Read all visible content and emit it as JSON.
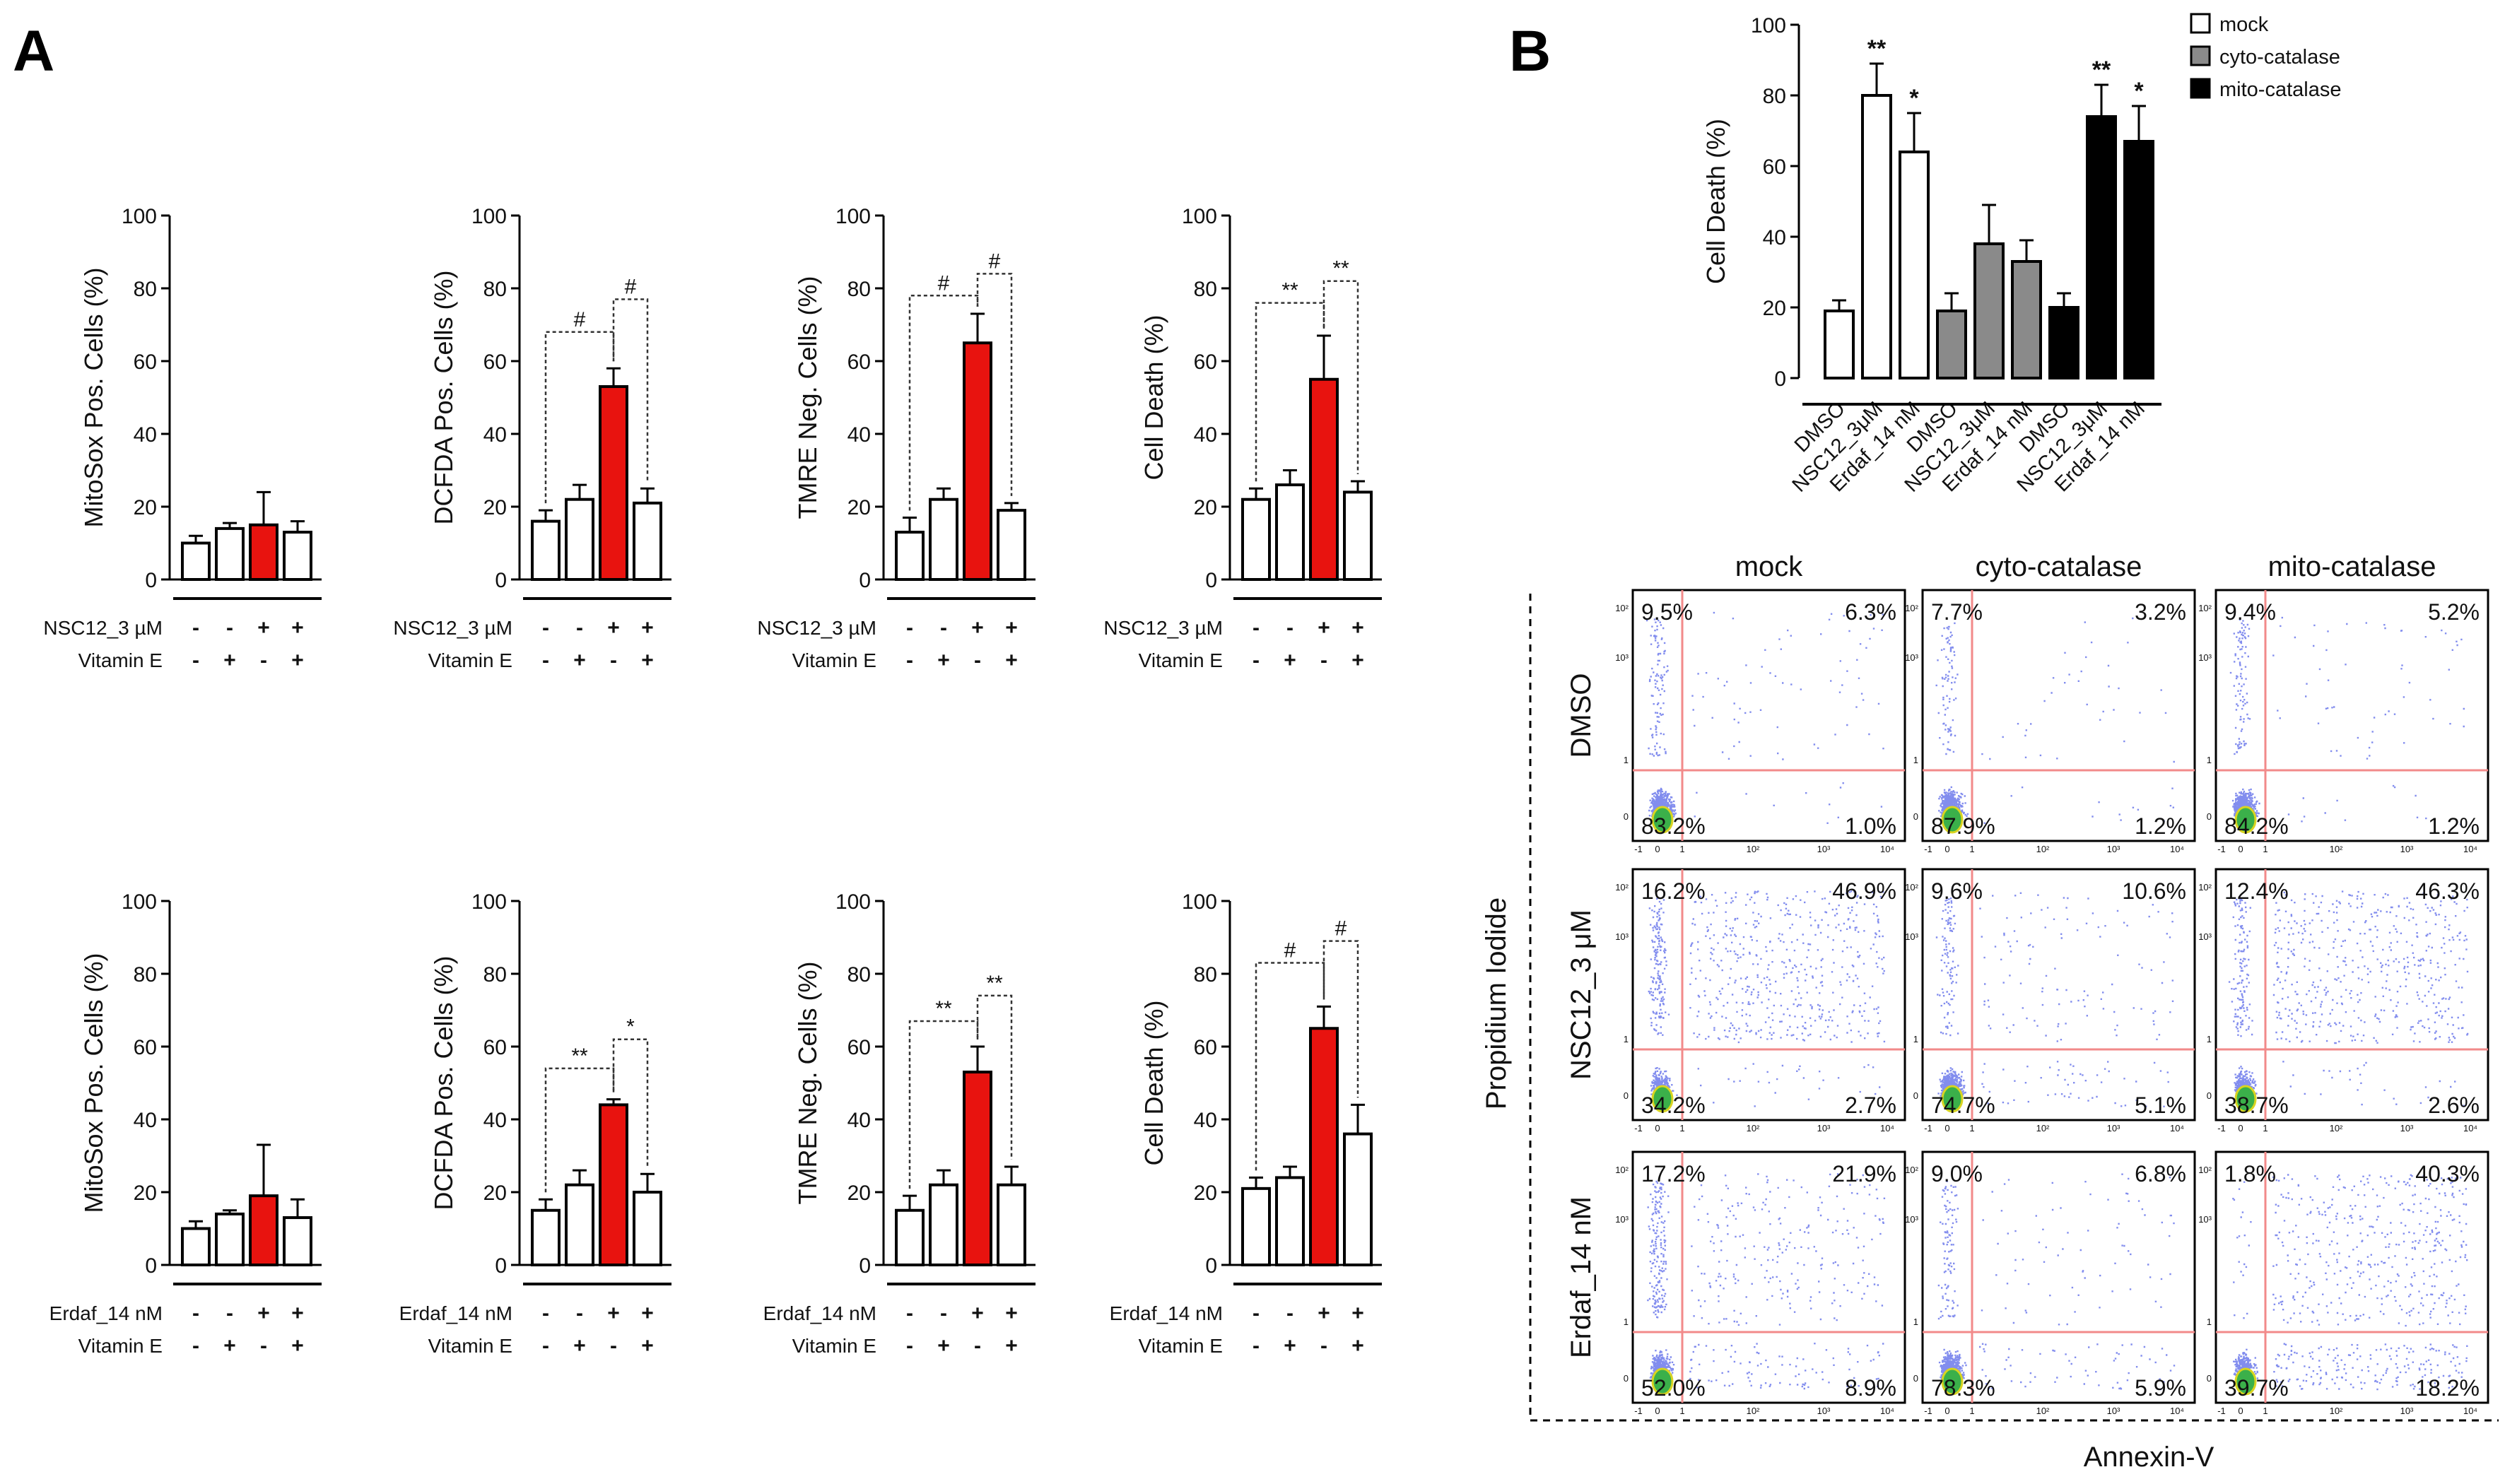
{
  "panel_letters": [
    "A",
    "B"
  ],
  "colors": {
    "red": "#e8130f",
    "gray": "#8a8a8a",
    "black": "#000000",
    "white": "#ffffff",
    "gate": "#f28a8a",
    "dots": "#1c2fe0"
  },
  "chart_data": [
    {
      "type": "bar",
      "ylabel": "MitoSox Pos. Cells (%)",
      "ylim": [
        0,
        100
      ],
      "yticks": [
        "0",
        "20",
        "40",
        "60",
        "80",
        "100"
      ],
      "values": [
        10,
        14,
        15,
        13
      ],
      "errors": [
        2,
        1.5,
        9,
        3
      ],
      "colors": [
        "white",
        "white",
        "red",
        "white"
      ],
      "cond_rows": [
        {
          "label": "NSC12_3 µM",
          "signs": [
            "-",
            "-",
            "+",
            "+"
          ]
        },
        {
          "label": "Vitamin E",
          "signs": [
            "-",
            "+",
            "-",
            "+"
          ]
        }
      ],
      "annotations": []
    },
    {
      "type": "bar",
      "ylabel": "DCFDA Pos. Cells (%)",
      "ylim": [
        0,
        100
      ],
      "yticks": [
        "0",
        "20",
        "40",
        "60",
        "80",
        "100"
      ],
      "values": [
        16,
        22,
        53,
        21
      ],
      "errors": [
        3,
        4,
        5,
        4
      ],
      "colors": [
        "white",
        "white",
        "red",
        "white"
      ],
      "cond_rows": [
        {
          "label": "NSC12_3 µM",
          "signs": [
            "-",
            "-",
            "+",
            "+"
          ]
        },
        {
          "label": "Vitamin E",
          "signs": [
            "-",
            "+",
            "-",
            "+"
          ]
        }
      ],
      "annotations": [
        {
          "from": 0,
          "to": 2,
          "y": 68,
          "text": "#"
        },
        {
          "from": 2,
          "to": 3,
          "y": 77,
          "text": "#"
        }
      ]
    },
    {
      "type": "bar",
      "ylabel": "TMRE Neg. Cells (%)",
      "ylim": [
        0,
        100
      ],
      "yticks": [
        "0",
        "20",
        "40",
        "60",
        "80",
        "100"
      ],
      "values": [
        13,
        22,
        65,
        19
      ],
      "errors": [
        4,
        3,
        8,
        2
      ],
      "colors": [
        "white",
        "white",
        "red",
        "white"
      ],
      "cond_rows": [
        {
          "label": "NSC12_3 µM",
          "signs": [
            "-",
            "-",
            "+",
            "+"
          ]
        },
        {
          "label": "Vitamin E",
          "signs": [
            "-",
            "+",
            "-",
            "+"
          ]
        }
      ],
      "annotations": [
        {
          "from": 0,
          "to": 2,
          "y": 78,
          "text": "#"
        },
        {
          "from": 2,
          "to": 3,
          "y": 84,
          "text": "#"
        }
      ]
    },
    {
      "type": "bar",
      "ylabel": "Cell Death (%)",
      "ylim": [
        0,
        100
      ],
      "yticks": [
        "0",
        "20",
        "40",
        "60",
        "80",
        "100"
      ],
      "values": [
        22,
        26,
        55,
        24
      ],
      "errors": [
        3,
        4,
        12,
        3
      ],
      "colors": [
        "white",
        "white",
        "red",
        "white"
      ],
      "cond_rows": [
        {
          "label": "NSC12_3 µM",
          "signs": [
            "-",
            "-",
            "+",
            "+"
          ]
        },
        {
          "label": "Vitamin E",
          "signs": [
            "-",
            "+",
            "-",
            "+"
          ]
        }
      ],
      "annotations": [
        {
          "from": 0,
          "to": 2,
          "y": 76,
          "text": "**"
        },
        {
          "from": 2,
          "to": 3,
          "y": 82,
          "text": "**"
        }
      ]
    },
    {
      "type": "bar",
      "ylabel": "MitoSox Pos. Cells (%)",
      "ylim": [
        0,
        100
      ],
      "yticks": [
        "0",
        "20",
        "40",
        "60",
        "80",
        "100"
      ],
      "values": [
        10,
        14,
        19,
        13
      ],
      "errors": [
        2,
        1,
        14,
        5
      ],
      "colors": [
        "white",
        "white",
        "red",
        "white"
      ],
      "cond_rows": [
        {
          "label": "Erdaf_14 nM",
          "signs": [
            "-",
            "-",
            "+",
            "+"
          ]
        },
        {
          "label": "Vitamin E",
          "signs": [
            "-",
            "+",
            "-",
            "+"
          ]
        }
      ],
      "annotations": []
    },
    {
      "type": "bar",
      "ylabel": "DCFDA Pos. Cells (%)",
      "ylim": [
        0,
        100
      ],
      "yticks": [
        "0",
        "20",
        "40",
        "60",
        "80",
        "100"
      ],
      "values": [
        15,
        22,
        44,
        20
      ],
      "errors": [
        3,
        4,
        1.5,
        5
      ],
      "colors": [
        "white",
        "white",
        "red",
        "white"
      ],
      "cond_rows": [
        {
          "label": "Erdaf_14 nM",
          "signs": [
            "-",
            "-",
            "+",
            "+"
          ]
        },
        {
          "label": "Vitamin E",
          "signs": [
            "-",
            "+",
            "-",
            "+"
          ]
        }
      ],
      "annotations": [
        {
          "from": 0,
          "to": 2,
          "y": 54,
          "text": "**"
        },
        {
          "from": 2,
          "to": 3,
          "y": 62,
          "text": "*"
        }
      ]
    },
    {
      "type": "bar",
      "ylabel": "TMRE Neg. Cells (%)",
      "ylim": [
        0,
        100
      ],
      "yticks": [
        "0",
        "20",
        "40",
        "60",
        "80",
        "100"
      ],
      "values": [
        15,
        22,
        53,
        22
      ],
      "errors": [
        4,
        4,
        7,
        5
      ],
      "colors": [
        "white",
        "white",
        "red",
        "white"
      ],
      "cond_rows": [
        {
          "label": "Erdaf_14 nM",
          "signs": [
            "-",
            "-",
            "+",
            "+"
          ]
        },
        {
          "label": "Vitamin E",
          "signs": [
            "-",
            "+",
            "-",
            "+"
          ]
        }
      ],
      "annotations": [
        {
          "from": 0,
          "to": 2,
          "y": 67,
          "text": "**"
        },
        {
          "from": 2,
          "to": 3,
          "y": 74,
          "text": "**"
        }
      ]
    },
    {
      "type": "bar",
      "ylabel": "Cell Death (%)",
      "ylim": [
        0,
        100
      ],
      "yticks": [
        "0",
        "20",
        "40",
        "60",
        "80",
        "100"
      ],
      "values": [
        21,
        24,
        65,
        36
      ],
      "errors": [
        3,
        3,
        6,
        8
      ],
      "colors": [
        "white",
        "white",
        "red",
        "white"
      ],
      "cond_rows": [
        {
          "label": "Erdaf_14 nM",
          "signs": [
            "-",
            "-",
            "+",
            "+"
          ]
        },
        {
          "label": "Vitamin E",
          "signs": [
            "-",
            "+",
            "-",
            "+"
          ]
        }
      ],
      "annotations": [
        {
          "from": 0,
          "to": 2,
          "y": 83,
          "text": "#"
        },
        {
          "from": 2,
          "to": 3,
          "y": 89,
          "text": "#"
        }
      ]
    },
    {
      "type": "bar",
      "ylabel": "Cell Death (%)",
      "ylim": [
        0,
        100
      ],
      "yticks": [
        "0",
        "20",
        "40",
        "60",
        "80",
        "100"
      ],
      "categories": [
        "DMSO",
        "NSC12_3μM",
        "Erdaf_14 nM",
        "DMSO",
        "NSC12_3μM",
        "Erdaf_14 nM",
        "DMSO",
        "NSC12_3μM",
        "Erdaf_14 nM"
      ],
      "values": [
        19,
        80,
        64,
        19,
        38,
        33,
        20,
        74,
        67
      ],
      "errors": [
        3,
        9,
        11,
        5,
        11,
        6,
        4,
        9,
        10
      ],
      "colors": [
        "white",
        "white",
        "white",
        "gray",
        "gray",
        "gray",
        "black",
        "black",
        "black"
      ],
      "stars": [
        "",
        "**",
        "*",
        "",
        "",
        "",
        "",
        "**",
        "*"
      ],
      "legend": [
        {
          "name": "mock",
          "color": "white"
        },
        {
          "name": "cyto-catalase",
          "color": "gray"
        },
        {
          "name": "mito-catalase",
          "color": "black"
        }
      ]
    },
    {
      "type": "scatter",
      "xlabel": "Annexin-V",
      "ylabel": "Propidium Iodide",
      "columns": [
        "mock",
        "cyto-catalase",
        "mito-catalase"
      ],
      "rows": [
        "DMSO",
        "NSC12_3 μM",
        "Erdaf_14 nM"
      ],
      "quadrants": [
        [
          [
            "9.5%",
            "6.3%",
            "83.2%",
            "1.0%"
          ],
          [
            "7.7%",
            "3.2%",
            "87.9%",
            "1.2%"
          ],
          [
            "9.4%",
            "5.2%",
            "84.2%",
            "1.2%"
          ]
        ],
        [
          [
            "16.2%",
            "46.9%",
            "34.2%",
            "2.7%"
          ],
          [
            "9.6%",
            "10.6%",
            "74.7%",
            "5.1%"
          ],
          [
            "12.4%",
            "46.3%",
            "38.7%",
            "2.6%"
          ]
        ],
        [
          [
            "17.2%",
            "21.9%",
            "52.0%",
            "8.9%"
          ],
          [
            "9.0%",
            "6.8%",
            "78.3%",
            "5.9%"
          ],
          [
            "1.8%",
            "40.3%",
            "39.7%",
            "18.2%"
          ]
        ]
      ],
      "axis_ticks": [
        "1",
        "-1",
        "0",
        "1",
        "10²",
        "10³",
        "10⁴"
      ]
    }
  ]
}
